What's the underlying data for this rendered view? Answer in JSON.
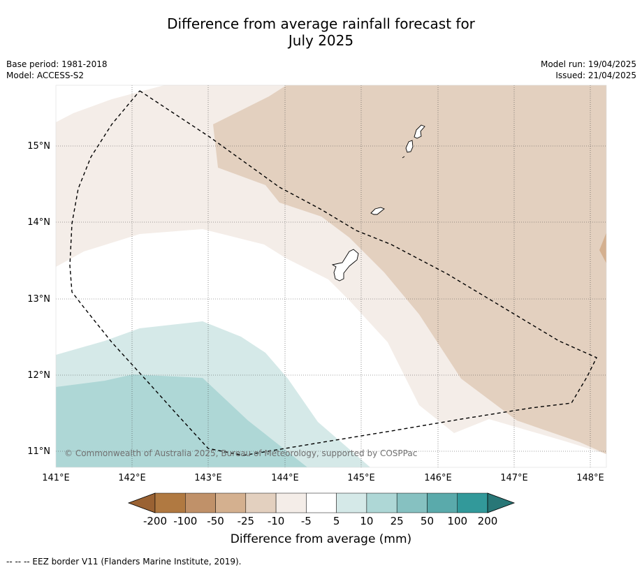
{
  "title_line1": "Difference from average rainfall forecast for",
  "title_line2": "July 2025",
  "meta_left": [
    "Base period: 1981-2018",
    "Model: ACCESS-S2"
  ],
  "meta_right": [
    "Model run: 19/04/2025",
    "Issued: 21/04/2025"
  ],
  "map": {
    "lon_ticks": [
      "141°E",
      "142°E",
      "143°E",
      "144°E",
      "145°E",
      "146°E",
      "147°E",
      "148°E"
    ],
    "lat_ticks": [
      "15°N",
      "14°N",
      "13°N",
      "12°N",
      "11°N"
    ],
    "copyright": "© Commonwealth of Australia 2025, Bureau of Meteorology, supported by COSPPac",
    "extent": {
      "lon_min": 140.8,
      "lon_max": 148.2,
      "lat_min": 10.8,
      "lat_max": 15.8
    }
  },
  "colorbar": {
    "tick_labels": [
      "-200",
      "-100",
      "-50",
      "-25",
      "-10",
      "-5",
      "5",
      "10",
      "25",
      "50",
      "100",
      "200"
    ],
    "colors": [
      "#9a6233",
      "#b07941",
      "#c09169",
      "#d4b08f",
      "#e3d0bf",
      "#f4ede8",
      "#ffffff",
      "#d5e9e8",
      "#aed7d6",
      "#86c1c1",
      "#5aaaab",
      "#32999a",
      "#287777"
    ],
    "label": "Difference from average (mm)"
  },
  "footer": "--  --  -- EEZ border V11 (Flanders Marine Institute, 2019)."
}
